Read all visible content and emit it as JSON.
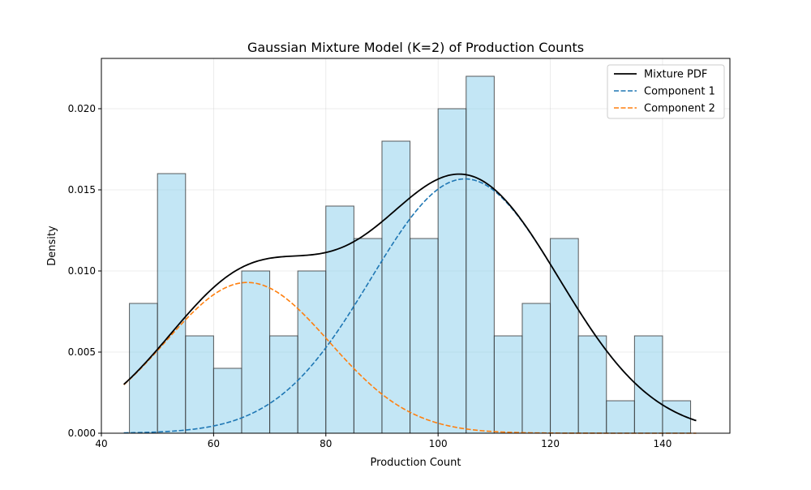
{
  "chart_data": {
    "type": "histogram",
    "title": "Gaussian Mixture Model (K=2) of Production Counts",
    "xlabel": "Production Count",
    "ylabel": "Density",
    "xlim": [
      40,
      152
    ],
    "ylim": [
      0,
      0.0231
    ],
    "xticks": [
      40,
      60,
      80,
      100,
      120,
      140
    ],
    "yticks": [
      0.0,
      0.005,
      0.01,
      0.015,
      0.02
    ],
    "ytick_labels": [
      "0.000",
      "0.005",
      "0.010",
      "0.015",
      "0.020"
    ],
    "grid": true,
    "legend_position": "top-right",
    "bins": {
      "edges": [
        45,
        50,
        55,
        60,
        65,
        70,
        75,
        80,
        85,
        90,
        95,
        100,
        105,
        110,
        115,
        120,
        125,
        130,
        135,
        140,
        145
      ],
      "densities": [
        0.008,
        0.016,
        0.006,
        0.004,
        0.01,
        0.006,
        0.01,
        0.014,
        0.012,
        0.018,
        0.012,
        0.02,
        0.022,
        0.006,
        0.008,
        0.012,
        0.006,
        0.002,
        0.006,
        0.002
      ],
      "fill": "#87ceeb",
      "edgecolor": "#333333"
    },
    "series": [
      {
        "name": "Mixture PDF",
        "style": "solid",
        "color": "#000000",
        "weight": 0.66,
        "mean": 104.8,
        "std": 16.8,
        "component": "sum"
      },
      {
        "name": "Component 1",
        "style": "dashed",
        "color": "#1f77b4",
        "weight": 0.66,
        "mean": 104.8,
        "std": 16.8
      },
      {
        "name": "Component 2",
        "style": "dashed",
        "color": "#ff7f0e",
        "weight": 0.34,
        "mean": 66.0,
        "std": 14.6
      }
    ],
    "curve_x_range": [
      44,
      146
    ]
  }
}
